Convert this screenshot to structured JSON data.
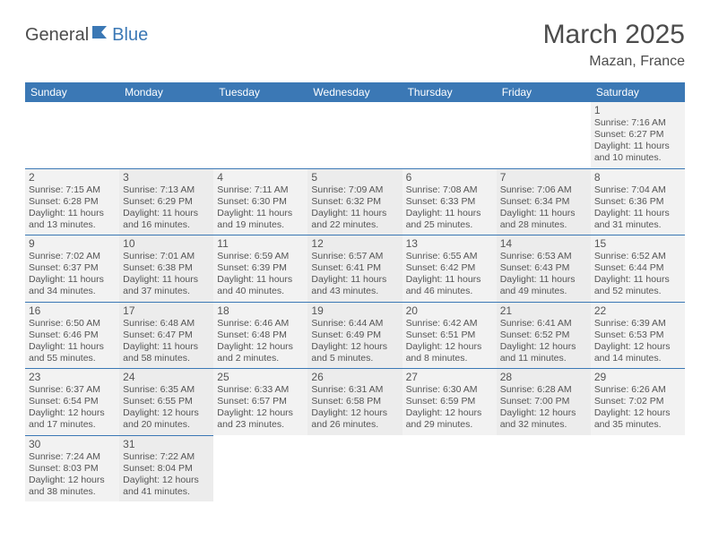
{
  "logo": {
    "part1": "General",
    "part2": "Blue",
    "flag_color": "#3b78b5"
  },
  "title": "March 2025",
  "location": "Mazan, France",
  "colors": {
    "header_bg": "#3b78b5",
    "header_fg": "#ffffff",
    "row_border": "#3b78b5",
    "body_text": "#555555"
  },
  "dayHeaders": [
    "Sunday",
    "Monday",
    "Tuesday",
    "Wednesday",
    "Thursday",
    "Friday",
    "Saturday"
  ],
  "weeks": [
    [
      null,
      null,
      null,
      null,
      null,
      null,
      {
        "n": "1",
        "sr": "Sunrise: 7:16 AM",
        "ss": "Sunset: 6:27 PM",
        "dl": "Daylight: 11 hours and 10 minutes."
      }
    ],
    [
      {
        "n": "2",
        "sr": "Sunrise: 7:15 AM",
        "ss": "Sunset: 6:28 PM",
        "dl": "Daylight: 11 hours and 13 minutes."
      },
      {
        "n": "3",
        "sr": "Sunrise: 7:13 AM",
        "ss": "Sunset: 6:29 PM",
        "dl": "Daylight: 11 hours and 16 minutes."
      },
      {
        "n": "4",
        "sr": "Sunrise: 7:11 AM",
        "ss": "Sunset: 6:30 PM",
        "dl": "Daylight: 11 hours and 19 minutes."
      },
      {
        "n": "5",
        "sr": "Sunrise: 7:09 AM",
        "ss": "Sunset: 6:32 PM",
        "dl": "Daylight: 11 hours and 22 minutes."
      },
      {
        "n": "6",
        "sr": "Sunrise: 7:08 AM",
        "ss": "Sunset: 6:33 PM",
        "dl": "Daylight: 11 hours and 25 minutes."
      },
      {
        "n": "7",
        "sr": "Sunrise: 7:06 AM",
        "ss": "Sunset: 6:34 PM",
        "dl": "Daylight: 11 hours and 28 minutes."
      },
      {
        "n": "8",
        "sr": "Sunrise: 7:04 AM",
        "ss": "Sunset: 6:36 PM",
        "dl": "Daylight: 11 hours and 31 minutes."
      }
    ],
    [
      {
        "n": "9",
        "sr": "Sunrise: 7:02 AM",
        "ss": "Sunset: 6:37 PM",
        "dl": "Daylight: 11 hours and 34 minutes."
      },
      {
        "n": "10",
        "sr": "Sunrise: 7:01 AM",
        "ss": "Sunset: 6:38 PM",
        "dl": "Daylight: 11 hours and 37 minutes."
      },
      {
        "n": "11",
        "sr": "Sunrise: 6:59 AM",
        "ss": "Sunset: 6:39 PM",
        "dl": "Daylight: 11 hours and 40 minutes."
      },
      {
        "n": "12",
        "sr": "Sunrise: 6:57 AM",
        "ss": "Sunset: 6:41 PM",
        "dl": "Daylight: 11 hours and 43 minutes."
      },
      {
        "n": "13",
        "sr": "Sunrise: 6:55 AM",
        "ss": "Sunset: 6:42 PM",
        "dl": "Daylight: 11 hours and 46 minutes."
      },
      {
        "n": "14",
        "sr": "Sunrise: 6:53 AM",
        "ss": "Sunset: 6:43 PM",
        "dl": "Daylight: 11 hours and 49 minutes."
      },
      {
        "n": "15",
        "sr": "Sunrise: 6:52 AM",
        "ss": "Sunset: 6:44 PM",
        "dl": "Daylight: 11 hours and 52 minutes."
      }
    ],
    [
      {
        "n": "16",
        "sr": "Sunrise: 6:50 AM",
        "ss": "Sunset: 6:46 PM",
        "dl": "Daylight: 11 hours and 55 minutes."
      },
      {
        "n": "17",
        "sr": "Sunrise: 6:48 AM",
        "ss": "Sunset: 6:47 PM",
        "dl": "Daylight: 11 hours and 58 minutes."
      },
      {
        "n": "18",
        "sr": "Sunrise: 6:46 AM",
        "ss": "Sunset: 6:48 PM",
        "dl": "Daylight: 12 hours and 2 minutes."
      },
      {
        "n": "19",
        "sr": "Sunrise: 6:44 AM",
        "ss": "Sunset: 6:49 PM",
        "dl": "Daylight: 12 hours and 5 minutes."
      },
      {
        "n": "20",
        "sr": "Sunrise: 6:42 AM",
        "ss": "Sunset: 6:51 PM",
        "dl": "Daylight: 12 hours and 8 minutes."
      },
      {
        "n": "21",
        "sr": "Sunrise: 6:41 AM",
        "ss": "Sunset: 6:52 PM",
        "dl": "Daylight: 12 hours and 11 minutes."
      },
      {
        "n": "22",
        "sr": "Sunrise: 6:39 AM",
        "ss": "Sunset: 6:53 PM",
        "dl": "Daylight: 12 hours and 14 minutes."
      }
    ],
    [
      {
        "n": "23",
        "sr": "Sunrise: 6:37 AM",
        "ss": "Sunset: 6:54 PM",
        "dl": "Daylight: 12 hours and 17 minutes."
      },
      {
        "n": "24",
        "sr": "Sunrise: 6:35 AM",
        "ss": "Sunset: 6:55 PM",
        "dl": "Daylight: 12 hours and 20 minutes."
      },
      {
        "n": "25",
        "sr": "Sunrise: 6:33 AM",
        "ss": "Sunset: 6:57 PM",
        "dl": "Daylight: 12 hours and 23 minutes."
      },
      {
        "n": "26",
        "sr": "Sunrise: 6:31 AM",
        "ss": "Sunset: 6:58 PM",
        "dl": "Daylight: 12 hours and 26 minutes."
      },
      {
        "n": "27",
        "sr": "Sunrise: 6:30 AM",
        "ss": "Sunset: 6:59 PM",
        "dl": "Daylight: 12 hours and 29 minutes."
      },
      {
        "n": "28",
        "sr": "Sunrise: 6:28 AM",
        "ss": "Sunset: 7:00 PM",
        "dl": "Daylight: 12 hours and 32 minutes."
      },
      {
        "n": "29",
        "sr": "Sunrise: 6:26 AM",
        "ss": "Sunset: 7:02 PM",
        "dl": "Daylight: 12 hours and 35 minutes."
      }
    ],
    [
      {
        "n": "30",
        "sr": "Sunrise: 7:24 AM",
        "ss": "Sunset: 8:03 PM",
        "dl": "Daylight: 12 hours and 38 minutes."
      },
      {
        "n": "31",
        "sr": "Sunrise: 7:22 AM",
        "ss": "Sunset: 8:04 PM",
        "dl": "Daylight: 12 hours and 41 minutes."
      },
      null,
      null,
      null,
      null,
      null
    ]
  ]
}
